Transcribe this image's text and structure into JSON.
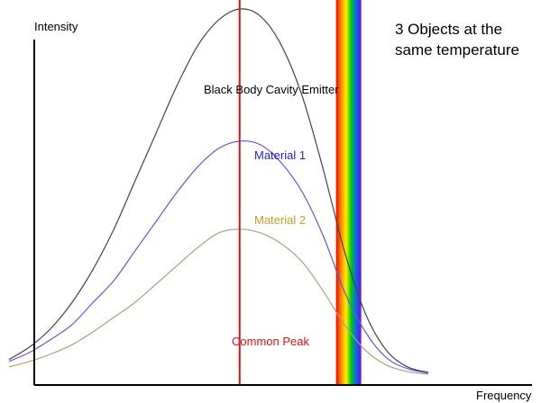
{
  "chart_data": {
    "type": "line",
    "title": "3 Objects at the same temperature",
    "title_lines": [
      "3 Objects at the",
      "same temperature"
    ],
    "xlabel": "Frequency",
    "ylabel": "Intensity",
    "grid": false,
    "x": [
      0,
      0.05,
      0.1,
      0.15,
      0.2,
      0.25,
      0.3,
      0.35,
      0.4,
      0.45,
      0.5,
      0.55,
      0.6,
      0.65,
      0.7,
      0.75,
      0.8,
      0.85,
      0.9,
      0.95,
      1.0
    ],
    "series": [
      {
        "name": "Black Body Cavity Emitter",
        "color": "#444444",
        "values": [
          0.045,
          0.08,
          0.13,
          0.2,
          0.29,
          0.4,
          0.53,
          0.66,
          0.79,
          0.9,
          0.97,
          1.0,
          0.98,
          0.9,
          0.76,
          0.56,
          0.34,
          0.17,
          0.07,
          0.025,
          0.01
        ]
      },
      {
        "name": "Material 1",
        "color": "#6655dd",
        "values": [
          0.04,
          0.065,
          0.1,
          0.14,
          0.2,
          0.26,
          0.34,
          0.42,
          0.5,
          0.57,
          0.62,
          0.64,
          0.63,
          0.58,
          0.5,
          0.38,
          0.23,
          0.12,
          0.05,
          0.02,
          0.008
        ]
      },
      {
        "name": "Material 2",
        "color": "#b89a7a",
        "values": [
          0.025,
          0.04,
          0.06,
          0.085,
          0.12,
          0.16,
          0.2,
          0.25,
          0.3,
          0.35,
          0.39,
          0.4,
          0.39,
          0.36,
          0.31,
          0.23,
          0.14,
          0.07,
          0.03,
          0.012,
          0.005
        ]
      }
    ],
    "common_peak": {
      "label": "Common Peak",
      "x": 0.55,
      "color": "#dd1111"
    },
    "spectrum_band": {
      "x_start": 0.78,
      "x_end": 0.84,
      "colors": [
        "#ff0000",
        "#ff8800",
        "#ffee00",
        "#00cc00",
        "#0066ff",
        "#8800cc"
      ]
    },
    "labels": {
      "black_body": {
        "text": "Black Body Cavity Emitter",
        "color": "#000000"
      },
      "material1": {
        "text": "Material 1",
        "color": "#2222cc"
      },
      "material2": {
        "text": "Material 2",
        "color": "#c8a020"
      }
    },
    "xlim": [
      0,
      1
    ],
    "ylim": [
      0,
      1
    ]
  }
}
